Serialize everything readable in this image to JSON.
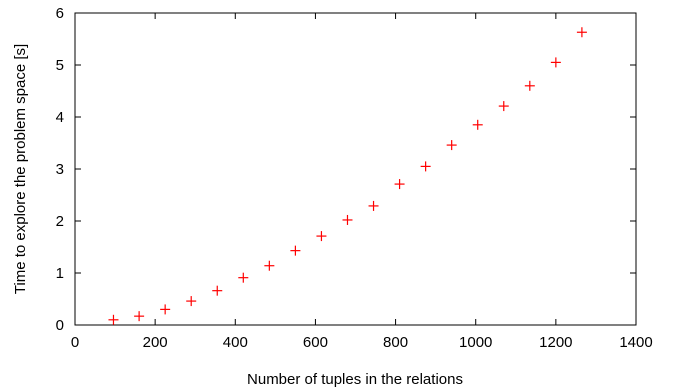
{
  "chart_data": {
    "type": "scatter",
    "title": "",
    "xlabel": "Number of tuples in the relations",
    "ylabel": "Time to explore the problem space [s]",
    "xlim": [
      0,
      1400
    ],
    "ylim": [
      0,
      6
    ],
    "xticks": [
      "0",
      "200",
      "400",
      "600",
      "800",
      "1000",
      "1200",
      "1400"
    ],
    "yticks": [
      "0",
      "1",
      "2",
      "3",
      "4",
      "5",
      "6"
    ],
    "grid": false,
    "legend": "none",
    "marker": "plus",
    "marker_color": "#ff0000",
    "series": [
      {
        "x": [
          96,
          160,
          225,
          290,
          355,
          420,
          485,
          550,
          615,
          680,
          745,
          810,
          875,
          940,
          1005,
          1070,
          1135,
          1200,
          1265
        ],
        "y": [
          0.1,
          0.17,
          0.3,
          0.46,
          0.66,
          0.91,
          1.14,
          1.43,
          1.71,
          2.02,
          2.29,
          2.71,
          3.05,
          3.46,
          3.85,
          4.21,
          4.6,
          5.05,
          5.63
        ]
      }
    ]
  }
}
